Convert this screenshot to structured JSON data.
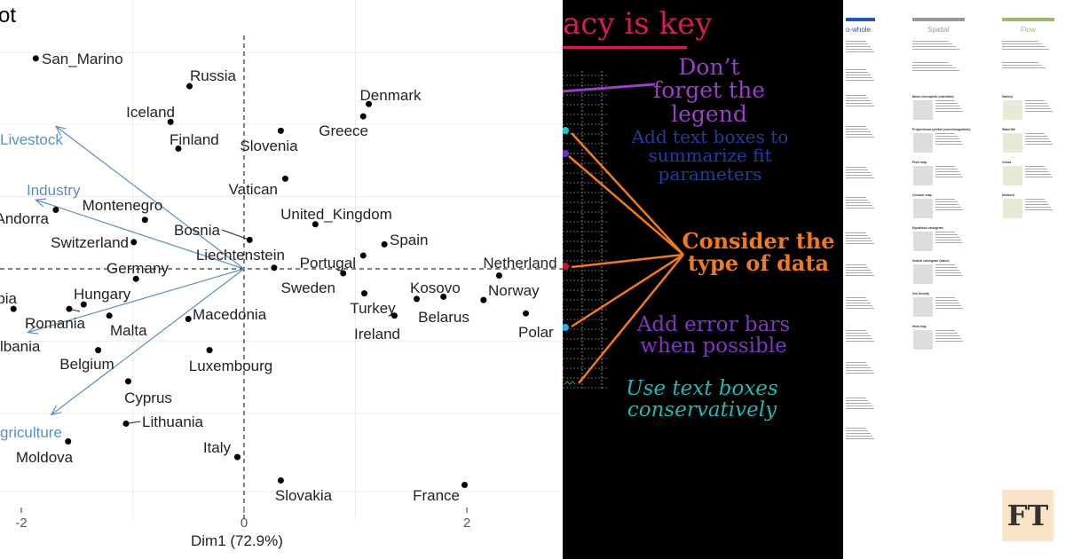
{
  "chart_data": {
    "type": "scatter",
    "title": "ot",
    "xlabel": "Dim1 (72.9%)",
    "ylabel": "",
    "xticks": [
      -2,
      0,
      2
    ],
    "xlim": [
      -2.2,
      2.85
    ],
    "ylim": [
      -2.6,
      2.4
    ],
    "grid": true,
    "points": [
      {
        "label": "San_Marino",
        "x": -1.87,
        "y": 1.89
      },
      {
        "label": "Russia",
        "x": -0.49,
        "y": 1.64
      },
      {
        "label": "Iceland",
        "x": -0.66,
        "y": 1.32
      },
      {
        "label": "Finland",
        "x": -0.59,
        "y": 1.08
      },
      {
        "label": "Slovenia",
        "x": 0.33,
        "y": 1.24
      },
      {
        "label": "Denmark",
        "x": 1.12,
        "y": 1.48
      },
      {
        "label": "Greece",
        "x": 1.07,
        "y": 1.37
      },
      {
        "label": "Vatican",
        "x": 0.37,
        "y": 0.81
      },
      {
        "label": "United_Kingdom",
        "x": 0.64,
        "y": 0.4
      },
      {
        "label": "Spain",
        "x": 1.26,
        "y": 0.22
      },
      {
        "label": "Portugal",
        "x": 1.07,
        "y": 0.12
      },
      {
        "label": "Liechtenstein",
        "x": 0.27,
        "y": 0.01
      },
      {
        "label": "Sweden",
        "x": 0.89,
        "y": -0.04
      },
      {
        "label": "Bosnia",
        "x": 0.05,
        "y": 0.26
      },
      {
        "label": "Montenegro",
        "x": -0.89,
        "y": 0.44
      },
      {
        "label": "Andorra",
        "x": -1.69,
        "y": 0.53
      },
      {
        "label": "Switzerland",
        "x": -0.99,
        "y": 0.24
      },
      {
        "label": "Germany",
        "x": -0.97,
        "y": -0.09
      },
      {
        "label": "Hungary",
        "x": -1.44,
        "y": -0.32
      },
      {
        "label": "Romania",
        "x": -1.57,
        "y": -0.36
      },
      {
        "label": "bia",
        "x": -2.07,
        "y": -0.36
      },
      {
        "label": "lbania",
        "x": -2.3,
        "y": -0.68
      },
      {
        "label": "Malta",
        "x": -1.21,
        "y": -0.42
      },
      {
        "label": "Macedonia",
        "x": -0.5,
        "y": -0.45
      },
      {
        "label": "Belgium",
        "x": -1.31,
        "y": -0.73
      },
      {
        "label": "Luxembourg",
        "x": -0.31,
        "y": -0.73
      },
      {
        "label": "Cyprus",
        "x": -1.04,
        "y": -1.01
      },
      {
        "label": "Lithuania",
        "x": -1.06,
        "y": -1.39
      },
      {
        "label": "Moldova",
        "x": -1.58,
        "y": -1.55
      },
      {
        "label": "Italy",
        "x": -0.06,
        "y": -1.69
      },
      {
        "label": "Slovakia",
        "x": 0.33,
        "y": -1.9
      },
      {
        "label": "France",
        "x": 1.98,
        "y": -1.94
      },
      {
        "label": "Turkey",
        "x": 1.08,
        "y": -0.22
      },
      {
        "label": "Ireland",
        "x": 1.35,
        "y": -0.42
      },
      {
        "label": "Kosovo",
        "x": 1.55,
        "y": -0.27
      },
      {
        "label": "Belarus",
        "x": 1.79,
        "y": -0.25
      },
      {
        "label": "Norway",
        "x": 2.15,
        "y": -0.28
      },
      {
        "label": "Netherland",
        "x": 2.29,
        "y": -0.06
      },
      {
        "label": "Polar",
        "x": 2.53,
        "y": -0.4
      }
    ],
    "vectors": [
      {
        "label": "Livestock",
        "x": -1.69,
        "y": 1.28
      },
      {
        "label": "Industry",
        "x": -1.87,
        "y": 0.62
      },
      {
        "label": "",
        "x": -1.94,
        "y": -0.57
      },
      {
        "label": "griculture",
        "x": -1.73,
        "y": -1.31
      }
    ],
    "colors": {
      "points": "#000000",
      "vectors": "#5b8fc2"
    }
  },
  "slide": {
    "title": "acy is key",
    "notes": [
      {
        "text": "Don’t forget the legend",
        "color": "#9a3fc8"
      },
      {
        "text": "Add text boxes to summarize fit parameters",
        "color": "#1f3f9e"
      },
      {
        "text": "Consider the type of data",
        "color": "#f07a1e"
      },
      {
        "text": "Add error bars when possible",
        "color": "#8036c0"
      },
      {
        "text": "Use text boxes conservatively",
        "color": "#22b8b8"
      }
    ],
    "colors": {
      "title": "#d81b50",
      "arrows": "#f07a1e"
    }
  },
  "poster": {
    "columns": [
      {
        "heading": "o-whole",
        "color": "#1d5aa6"
      },
      {
        "heading": "Spatial",
        "color": "#999999"
      },
      {
        "heading": "Flow",
        "color": "#9fb86a"
      }
    ],
    "spatial_sections": [
      "Basic choropleth (rate/ratio)",
      "Proportional symbol (count/magnitude)",
      "Flow map",
      "Contour map",
      "Equalised cartogram",
      "Scaled cartogram (value)",
      "Dot density",
      "Heat map"
    ],
    "flow_sections": [
      "Sankey",
      "Waterfall",
      "Chord",
      "Network"
    ],
    "logo": "FT"
  }
}
